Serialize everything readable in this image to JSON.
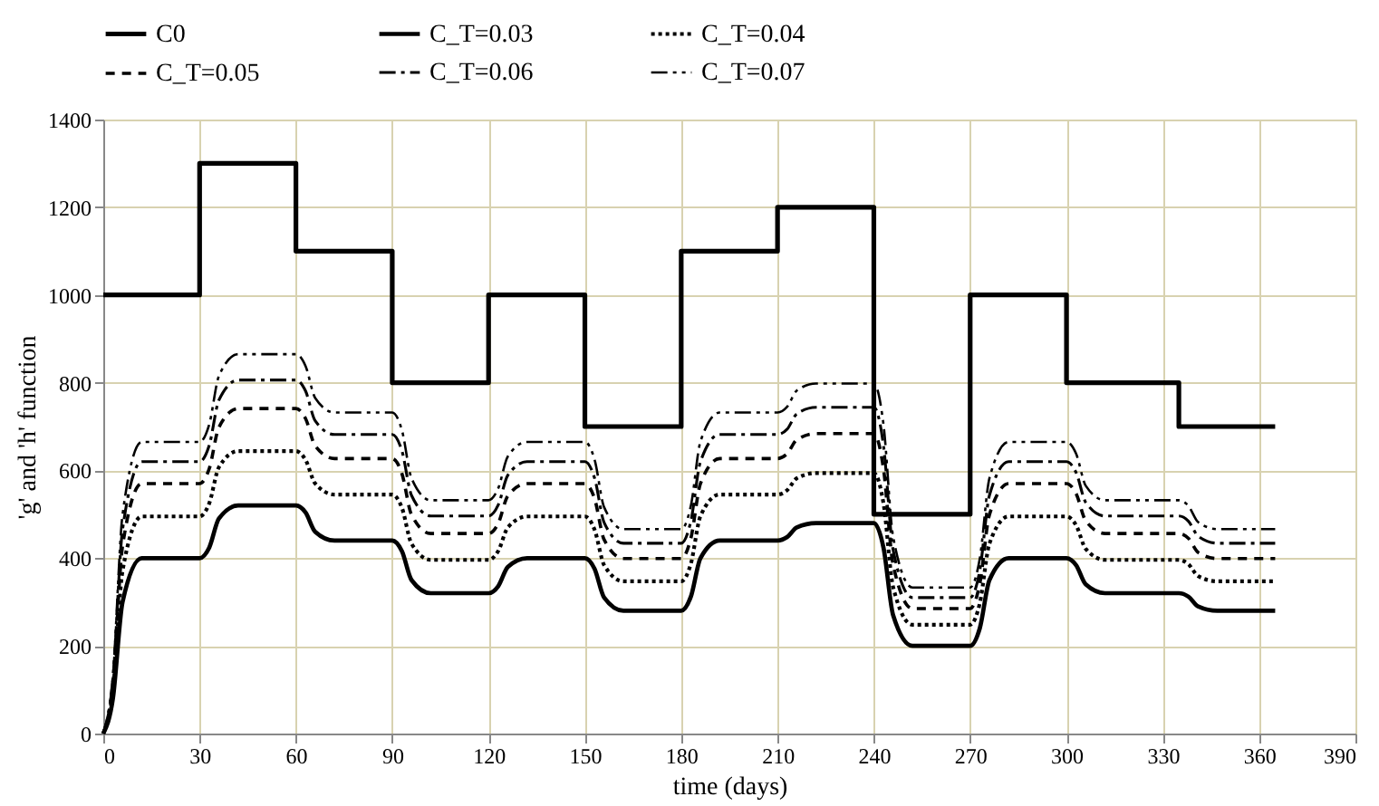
{
  "chart_data": {
    "type": "line",
    "xlabel": "time (days)",
    "ylabel": "'g' and 'h' function",
    "xlim": [
      0,
      390
    ],
    "xticks": [
      0,
      30,
      60,
      90,
      120,
      150,
      180,
      210,
      240,
      270,
      300,
      330,
      360,
      390
    ],
    "ylim": [
      0,
      1400
    ],
    "yticks": [
      0,
      200,
      400,
      600,
      800,
      1000,
      1200,
      1400
    ],
    "grid": true,
    "legend": "top",
    "marker": "none",
    "x": [
      0,
      3,
      6,
      12,
      30,
      33,
      36,
      42,
      60,
      63,
      66,
      72,
      90,
      93,
      96,
      102,
      120,
      123,
      126,
      132,
      150,
      153,
      156,
      162,
      180,
      183,
      186,
      192,
      210,
      213,
      216,
      222,
      240,
      243,
      246,
      252,
      270,
      273,
      276,
      282,
      300,
      303,
      306,
      312,
      335,
      338,
      341,
      347,
      365
    ],
    "series": [
      {
        "name": "C0",
        "type": "step",
        "color": "#000000",
        "line_style": "solid",
        "x": [
          0,
          30,
          60,
          90,
          120,
          150,
          180,
          210,
          240,
          270,
          300,
          335,
          365
        ],
        "values": [
          1000,
          1300,
          1100,
          800,
          1000,
          700,
          1100,
          1200,
          500,
          1000,
          800,
          700,
          700
        ]
      },
      {
        "name": "C_T=0.03",
        "color": "#000000",
        "line_style": "solid",
        "values": [
          0,
          80,
          300,
          400,
          400,
          424,
          490,
          520,
          520,
          504,
          460,
          440,
          440,
          416,
          350,
          320,
          320,
          336,
          380,
          400,
          400,
          376,
          310,
          280,
          280,
          312,
          400,
          440,
          440,
          448,
          470,
          480,
          480,
          424,
          270,
          200,
          200,
          240,
          350,
          400,
          400,
          384,
          340,
          320,
          320,
          312,
          290,
          280,
          280
        ]
      },
      {
        "name": "C_T=0.04",
        "color": "#000000",
        "line_style": "dotted",
        "values": [
          0,
          99,
          371,
          495,
          495,
          525,
          607,
          644,
          644,
          624,
          570,
          545,
          545,
          515,
          433,
          396,
          396,
          416,
          470,
          495,
          495,
          465,
          384,
          347,
          347,
          387,
          496,
          545,
          545,
          555,
          582,
          594,
          594,
          525,
          334,
          248,
          248,
          297,
          433,
          495,
          495,
          475,
          421,
          396,
          396,
          386,
          359,
          347,
          347
        ]
      },
      {
        "name": "C_T=0.05",
        "color": "#000000",
        "line_style": "dashed",
        "values": [
          0,
          114,
          428,
          570,
          570,
          604,
          698,
          741,
          741,
          718,
          656,
          627,
          627,
          593,
          499,
          456,
          456,
          479,
          542,
          570,
          570,
          536,
          442,
          399,
          399,
          445,
          570,
          627,
          627,
          638,
          670,
          684,
          684,
          604,
          385,
          285,
          285,
          342,
          499,
          570,
          570,
          547,
          485,
          456,
          456,
          445,
          413,
          399,
          399
        ]
      },
      {
        "name": "C_T=0.06",
        "color": "#000000",
        "line_style": "dashdot",
        "values": [
          0,
          124,
          465,
          620,
          620,
          657,
          760,
          806,
          806,
          781,
          713,
          682,
          682,
          645,
          543,
          496,
          496,
          521,
          589,
          620,
          620,
          583,
          481,
          434,
          434,
          484,
          620,
          682,
          682,
          694,
          729,
          744,
          744,
          657,
          419,
          310,
          310,
          372,
          543,
          620,
          620,
          595,
          527,
          496,
          496,
          484,
          450,
          434,
          434
        ]
      },
      {
        "name": "C_T=0.07",
        "color": "#000000",
        "line_style": "dashdotdot",
        "values": [
          0,
          133,
          499,
          665,
          665,
          705,
          815,
          865,
          865,
          838,
          765,
          732,
          732,
          692,
          582,
          532,
          532,
          559,
          632,
          665,
          665,
          625,
          516,
          466,
          466,
          519,
          666,
          732,
          732,
          745,
          782,
          798,
          798,
          705,
          449,
          333,
          333,
          399,
          582,
          665,
          665,
          638,
          565,
          532,
          532,
          519,
          482,
          466,
          466
        ]
      }
    ]
  }
}
